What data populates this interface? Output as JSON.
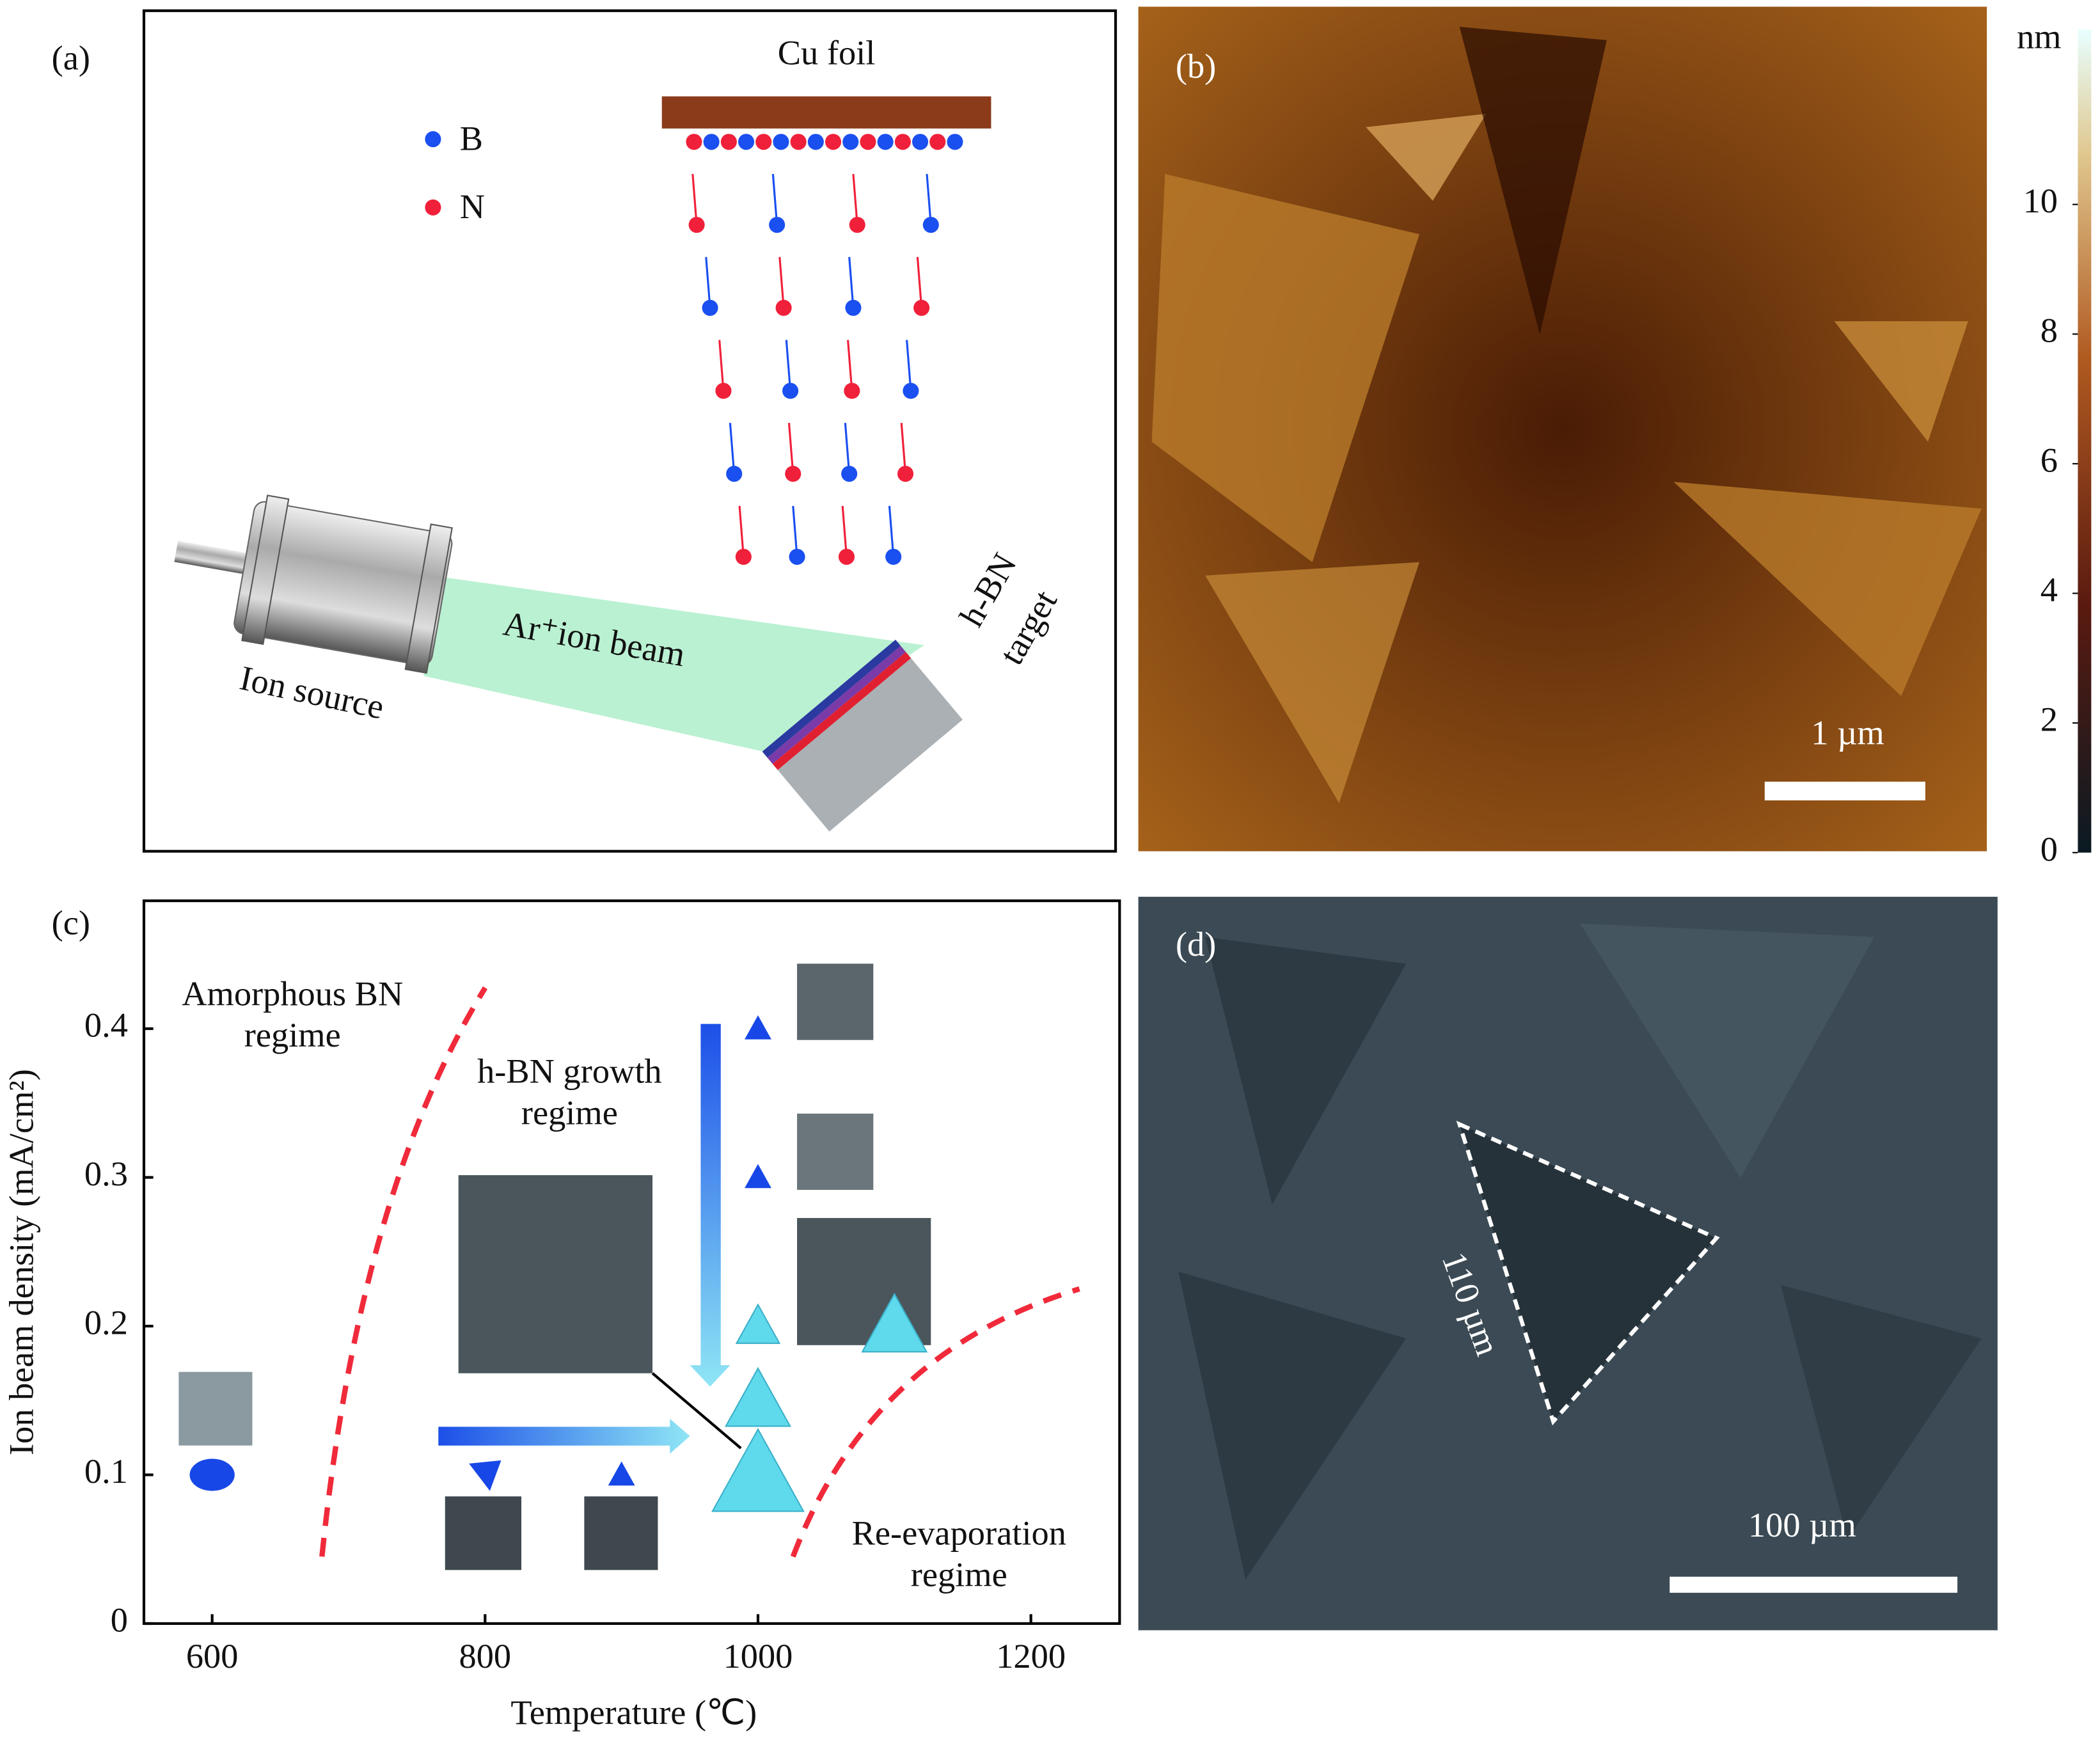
{
  "panel_a": {
    "label": "(a)",
    "cu_foil": "Cu foil",
    "legend": [
      "B",
      "N"
    ],
    "beam": "Ar⁺ion beam",
    "source": "Ion source",
    "target": [
      "h-BN",
      "target"
    ]
  },
  "panel_b": {
    "label": "(b)",
    "scale_bar": "1 µm",
    "colorbar": {
      "label": "nm",
      "lim": [
        0,
        12.7
      ],
      "ticks": [
        0,
        2,
        4,
        6,
        8,
        10
      ]
    }
  },
  "chart_data": {
    "type": "scatter",
    "label": "(c)",
    "xlabel": "Temperature (℃)",
    "ylabel": "Ion beam density (mA/cm²)",
    "xlim": [
      550,
      1265
    ],
    "ylim": [
      0,
      0.486
    ],
    "xticks": [
      600,
      800,
      1000,
      1200
    ],
    "yticks": [
      0,
      0.1,
      0.2,
      0.3,
      0.4
    ],
    "x": [
      600,
      800,
      900,
      1000,
      1000,
      1000,
      1000,
      1000,
      1100
    ],
    "values": [
      0.1,
      0.1,
      0.1,
      0.4,
      0.3,
      0.2,
      0.15,
      0.1,
      0.2
    ],
    "markers": [
      "ellipse",
      "wedge",
      "triangle",
      "triangle",
      "triangle",
      "triangle",
      "triangle",
      "triangle",
      "triangle"
    ],
    "colors": [
      "#1747e6",
      "#1747e6",
      "#1747e6",
      "#1747e6",
      "#1747e6",
      "#5fd9ec",
      "#5fd9ec",
      "#5fd9ec",
      "#5fd9ec"
    ],
    "annotations": [
      [
        "Amorphous BN",
        "regime"
      ],
      [
        "h-BN growth",
        "regime"
      ],
      [
        "Re-evaporation",
        "regime"
      ]
    ]
  },
  "panel_d": {
    "label": "(d)",
    "triangle_size": "110 µm",
    "scale_bar": "100 µm"
  }
}
